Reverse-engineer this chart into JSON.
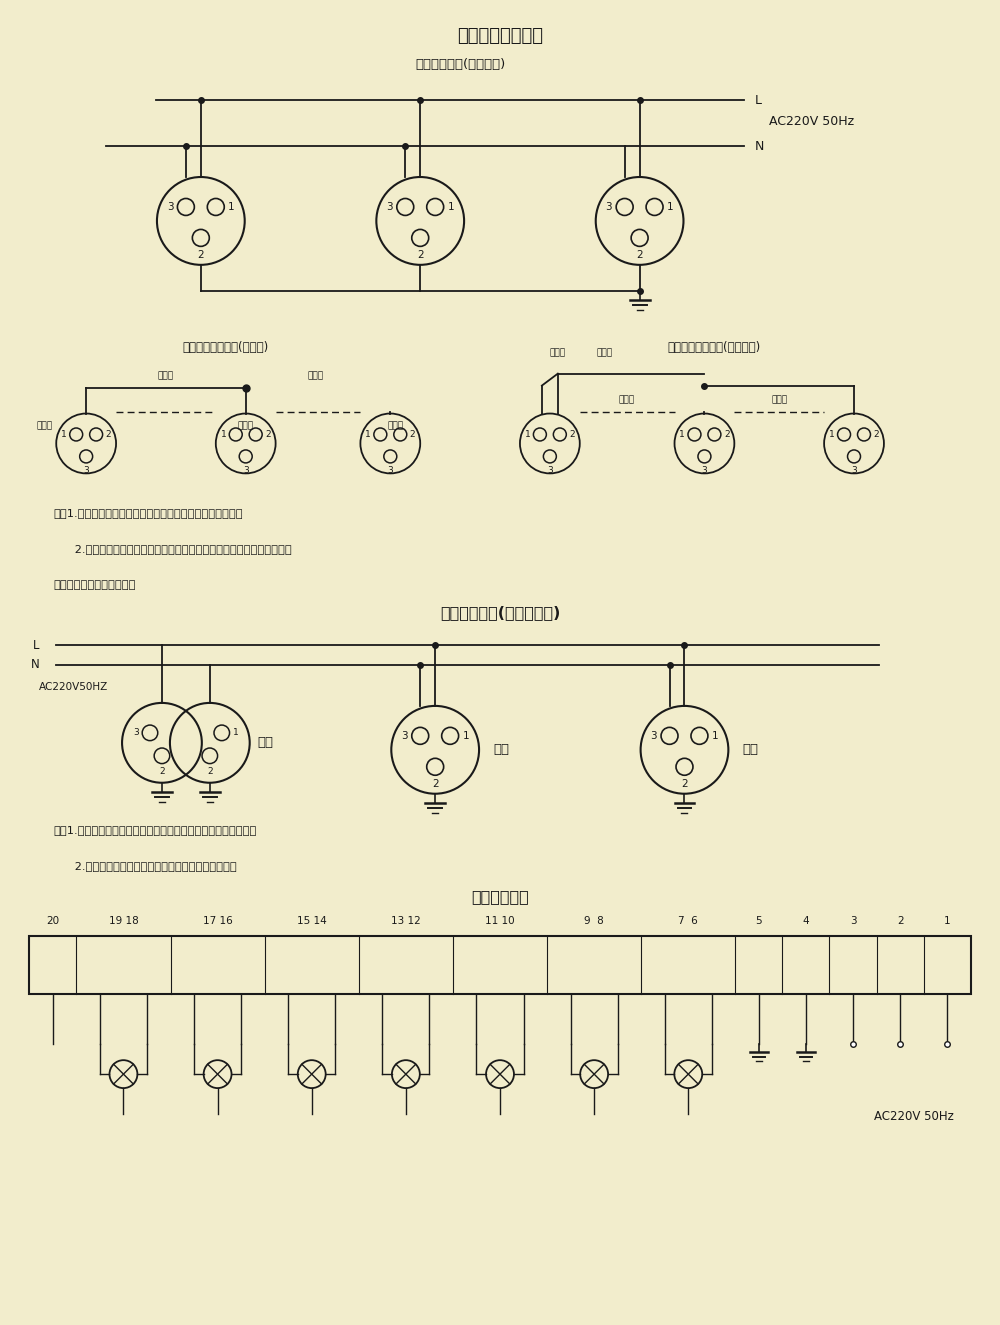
{
  "bg_color": "#f2edcc",
  "line_color": "#1a1a1a",
  "title1": "航空障碍灯接线图",
  "subtitle1": "电源线接线圈(航空插头)",
  "label_L": "L",
  "label_N": "N",
  "label_AC1": "AC220V 50Hz",
  "title2_left": "同步线接线示意图(慢启动)",
  "title2_right": "同步线接线示意图(直接启动)",
  "label_red_wire": "红芯线",
  "label_shield1": "屏蔽线",
  "label_shield2": "屏蔽线",
  "label_red_wire2": "红芯线",
  "label_red_wire3": "红芯线",
  "label_red_wire_r": "红芯线",
  "label_yellow_wire": "黄芯线",
  "label_shield3": "屏蔽线",
  "label_shield4": "屏蔽线",
  "note1_line1": "注：1.屏蔽线的红芯为输出信号，屏蔽线的黄芯为接受信号。",
  "note1_line2": "      2.第一台灯的接受信号线（黄芯）和末尾一台灯的输出信号线（红芯）",
  "note1_line3": "则不用（特种型号除外）。",
  "title3": "主控灯接线图(也叫母子灯)",
  "label_main_light": "主灯",
  "label_sub_light": "副灯",
  "label_AC2": "AC220V50HZ",
  "note2_line1": "注：1.主灯白天自动关闭，晚上自动打开，副灯与主灯同步闪光。",
  "note2_line2": "      2.采用主控灯控制，性能十分稳定可靠，布线简单。",
  "title4": "控制箱接线图",
  "term_labels": [
    "20",
    "19 18",
    "17 16",
    "15 14",
    "13 12",
    "11 10",
    "9  8",
    "7  6",
    "5",
    "4",
    "3",
    "2",
    "1"
  ],
  "label_AC3": "AC220V 50Hz"
}
